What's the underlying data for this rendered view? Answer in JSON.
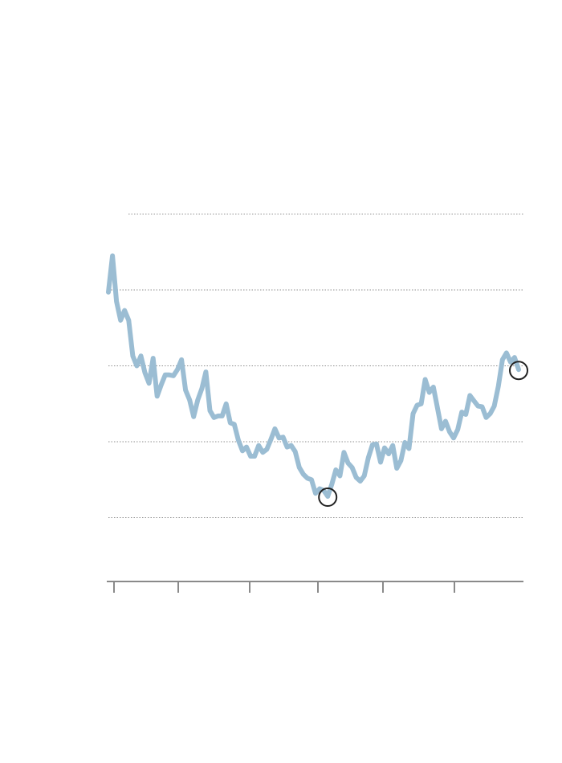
{
  "chart_data": {
    "type": "line",
    "title": "",
    "xlabel": "",
    "ylabel": "",
    "grid": true,
    "ylim": [
      0,
      5
    ],
    "x_tick_count": 6,
    "series": [
      {
        "color": "#9bbdd3",
        "values": [
          3.97,
          4.45,
          3.85,
          3.6,
          3.73,
          3.6,
          3.13,
          3.0,
          3.13,
          2.91,
          2.77,
          3.1,
          2.6,
          2.75,
          2.88,
          2.88,
          2.87,
          2.95,
          3.08,
          2.68,
          2.55,
          2.33,
          2.55,
          2.7,
          2.92,
          2.41,
          2.32,
          2.34,
          2.34,
          2.5,
          2.25,
          2.23,
          2.02,
          1.88,
          1.93,
          1.81,
          1.81,
          1.95,
          1.86,
          1.9,
          2.03,
          2.17,
          2.05,
          2.06,
          1.93,
          1.95,
          1.87,
          1.66,
          1.57,
          1.52,
          1.5,
          1.32,
          1.38,
          1.36,
          1.28,
          1.44,
          1.63,
          1.55,
          1.86,
          1.72,
          1.66,
          1.53,
          1.48,
          1.55,
          1.79,
          1.96,
          1.97,
          1.73,
          1.92,
          1.84,
          1.95,
          1.65,
          1.75,
          1.99,
          1.91,
          2.37,
          2.48,
          2.5,
          2.82,
          2.65,
          2.72,
          2.45,
          2.17,
          2.27,
          2.13,
          2.05,
          2.16,
          2.39,
          2.36,
          2.61,
          2.54,
          2.47,
          2.46,
          2.32,
          2.37,
          2.47,
          2.73,
          3.08,
          3.17,
          3.05,
          3.11,
          2.95
        ]
      }
    ],
    "highlights": [
      {
        "index": 54,
        "label": ""
      },
      {
        "index": 101,
        "label": ""
      }
    ]
  },
  "style": {
    "line_color": "#9bbdd3",
    "grid_color": "#8f8f8f",
    "axis_color": "#8a8a8a",
    "marker_color": "#222222"
  }
}
